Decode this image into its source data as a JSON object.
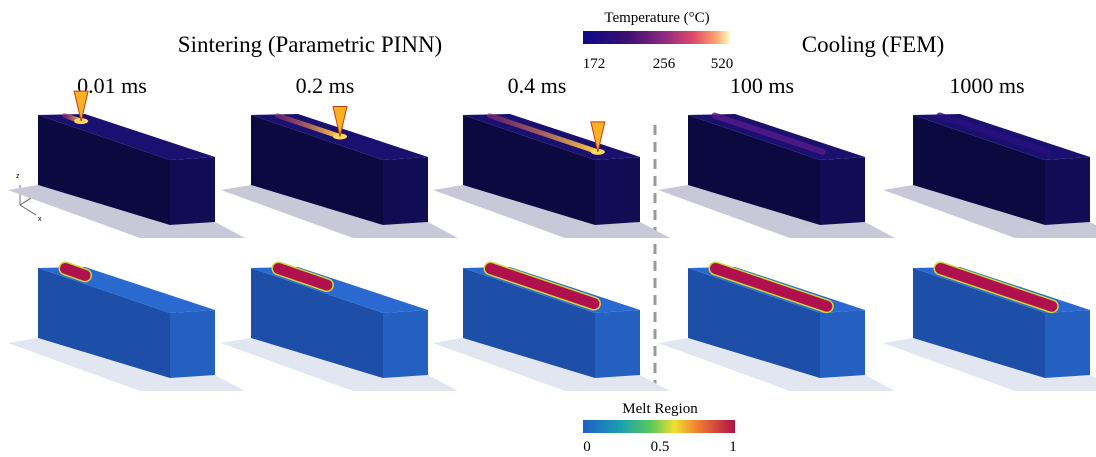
{
  "headers": {
    "left": "Sintering (Parametric PINN)",
    "right": "Cooling (FEM)"
  },
  "times": [
    "0.01 ms",
    "0.2 ms",
    "0.4 ms",
    "100 ms",
    "1000 ms"
  ],
  "temperature_bar": {
    "title": "Temperature (°C)",
    "labels": [
      "172",
      "256",
      "520"
    ]
  },
  "melt_bar": {
    "title": "Melt Region",
    "labels": [
      "0",
      "0.5",
      "1"
    ]
  },
  "axes": [
    "z",
    "y",
    "x"
  ]
}
